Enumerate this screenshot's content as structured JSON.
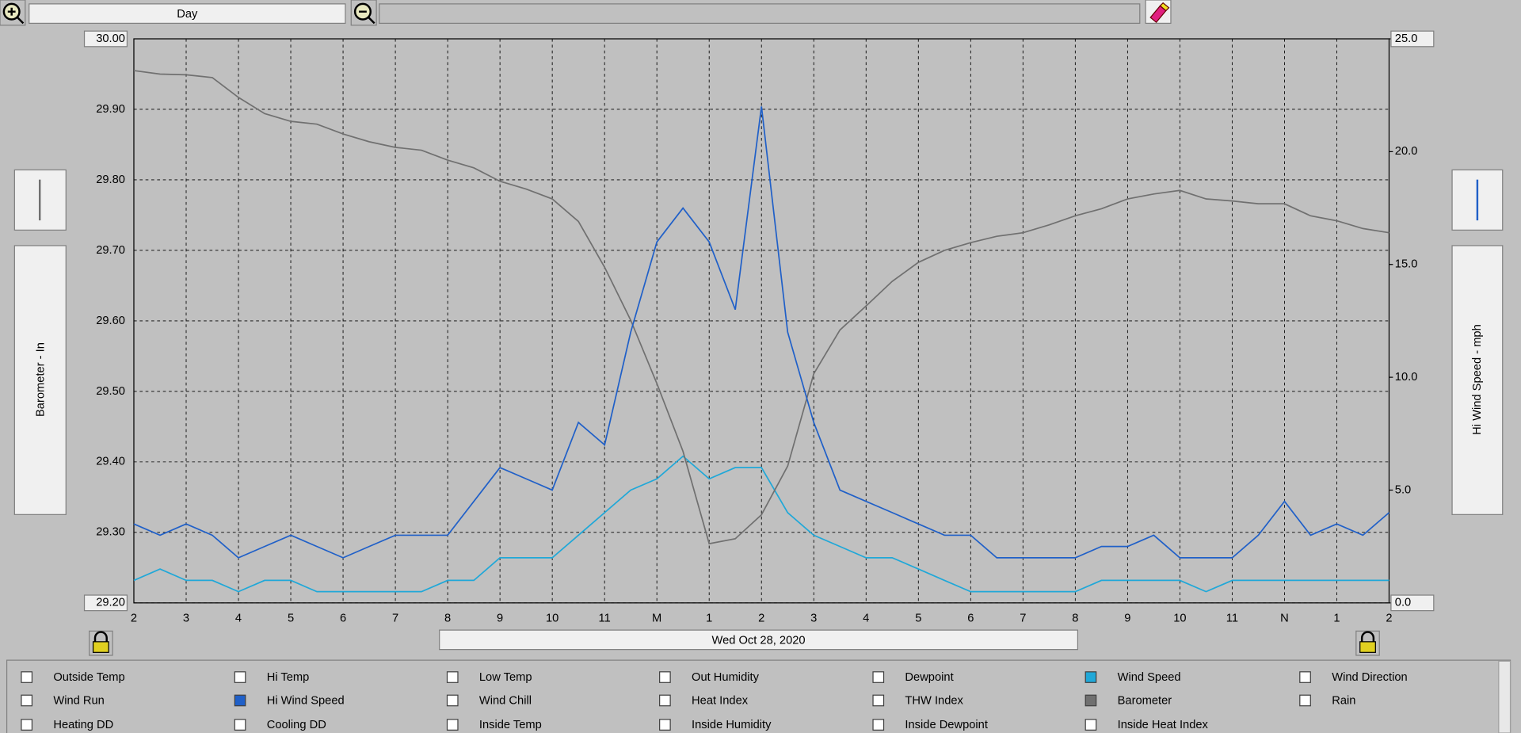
{
  "toolbar": {
    "range": "Day"
  },
  "chart_data": {
    "type": "line",
    "xlabel": "Wed Oct 28, 2020",
    "ylabel": "Barometer - In",
    "y2label": "Hi Wind Speed - mph",
    "grid": true,
    "xlim": [
      0,
      24
    ],
    "xticks": [
      {
        "value": 0,
        "label": "2"
      },
      {
        "value": 1,
        "label": "3"
      },
      {
        "value": 2,
        "label": "4"
      },
      {
        "value": 3,
        "label": "5"
      },
      {
        "value": 4,
        "label": "6"
      },
      {
        "value": 5,
        "label": "7"
      },
      {
        "value": 6,
        "label": "8"
      },
      {
        "value": 7,
        "label": "9"
      },
      {
        "value": 8,
        "label": "10"
      },
      {
        "value": 9,
        "label": "11"
      },
      {
        "value": 10,
        "label": "M"
      },
      {
        "value": 11,
        "label": "1"
      },
      {
        "value": 12,
        "label": "2"
      },
      {
        "value": 13,
        "label": "3"
      },
      {
        "value": 14,
        "label": "4"
      },
      {
        "value": 15,
        "label": "5"
      },
      {
        "value": 16,
        "label": "6"
      },
      {
        "value": 17,
        "label": "7"
      },
      {
        "value": 18,
        "label": "8"
      },
      {
        "value": 19,
        "label": "9"
      },
      {
        "value": 20,
        "label": "10"
      },
      {
        "value": 21,
        "label": "11"
      },
      {
        "value": 22,
        "label": "N"
      },
      {
        "value": 23,
        "label": "1"
      },
      {
        "value": 24,
        "label": "2"
      }
    ],
    "ylim": [
      29.2,
      30.0
    ],
    "yticks": [
      {
        "value": 29.2,
        "label": "29.20"
      },
      {
        "value": 29.3,
        "label": "29.30"
      },
      {
        "value": 29.4,
        "label": "29.40"
      },
      {
        "value": 29.5,
        "label": "29.50"
      },
      {
        "value": 29.6,
        "label": "29.60"
      },
      {
        "value": 29.7,
        "label": "29.70"
      },
      {
        "value": 29.8,
        "label": "29.80"
      },
      {
        "value": 29.9,
        "label": "29.90"
      },
      {
        "value": 30.0,
        "label": "30.00"
      }
    ],
    "y2lim": [
      0,
      25
    ],
    "y2ticks": [
      {
        "value": 0,
        "label": "0.0"
      },
      {
        "value": 5,
        "label": "5.0"
      },
      {
        "value": 10,
        "label": "10.0"
      },
      {
        "value": 15,
        "label": "15.0"
      },
      {
        "value": 20,
        "label": "20.0"
      },
      {
        "value": 25,
        "label": "25.0"
      }
    ],
    "x": [
      0,
      0.5,
      1,
      1.5,
      2,
      2.5,
      3,
      3.5,
      4,
      4.5,
      5,
      5.5,
      6,
      6.5,
      7,
      7.5,
      8,
      8.5,
      9,
      9.5,
      10,
      10.5,
      11,
      11.5,
      12,
      12.5,
      13,
      13.5,
      14,
      14.5,
      15,
      15.5,
      16,
      16.5,
      17,
      17.5,
      18,
      18.5,
      19,
      19.5,
      20,
      20.5,
      21,
      21.5,
      22,
      22.5,
      23,
      23.5,
      24
    ],
    "series": [
      {
        "color": "#20a8d8",
        "axis": "y2",
        "values": [
          1.0,
          1.5,
          1.0,
          1.0,
          0.5,
          1.0,
          1.0,
          0.5,
          0.5,
          0.5,
          0.5,
          0.5,
          1.0,
          1.0,
          2.0,
          2.0,
          2.0,
          3.0,
          4.0,
          5.0,
          5.5,
          6.5,
          5.5,
          6.0,
          6.0,
          4.0,
          3.0,
          2.5,
          2.0,
          2.0,
          1.5,
          1.0,
          0.5,
          0.5,
          0.5,
          0.5,
          0.5,
          1.0,
          1.0,
          1.0,
          1.0,
          0.5,
          1.0,
          1.0,
          1.0,
          1.0,
          1.0,
          1.0,
          1.0
        ]
      },
      {
        "color": "#707070",
        "values": [
          29.955,
          29.95,
          29.949,
          29.945,
          29.917,
          29.894,
          29.883,
          29.879,
          29.865,
          29.854,
          29.846,
          29.842,
          29.828,
          29.817,
          29.798,
          29.787,
          29.773,
          29.741,
          29.676,
          29.601,
          29.511,
          29.415,
          29.284,
          29.291,
          29.325,
          29.394,
          29.525,
          29.587,
          29.621,
          29.656,
          29.683,
          29.7,
          29.711,
          29.72,
          29.725,
          29.736,
          29.749,
          29.759,
          29.773,
          29.78,
          29.785,
          29.773,
          29.77,
          29.766,
          29.766,
          29.749,
          29.742,
          29.731,
          29.725
        ]
      },
      {
        "color": "#2060c8",
        "axis": "y2",
        "values": [
          3.5,
          3.0,
          3.5,
          3.0,
          2.0,
          2.5,
          3.0,
          2.5,
          2.0,
          2.5,
          3.0,
          3.0,
          3.0,
          4.5,
          6.0,
          5.5,
          5.0,
          8.0,
          7.0,
          12.0,
          16.0,
          17.5,
          16.0,
          13.0,
          22.0,
          12.0,
          8.0,
          5.0,
          4.5,
          4.0,
          3.5,
          3.0,
          3.0,
          2.0,
          2.0,
          2.0,
          2.0,
          2.5,
          2.5,
          3.0,
          2.0,
          2.0,
          2.0,
          3.0,
          4.5,
          3.0,
          3.5,
          3.0,
          4.0
        ]
      }
    ]
  },
  "legend_panel": [
    {
      "label": "Outside Temp",
      "checked": false
    },
    {
      "label": "Hi Temp",
      "checked": false
    },
    {
      "label": "Low Temp",
      "checked": false
    },
    {
      "label": "Out Humidity",
      "checked": false
    },
    {
      "label": "Dewpoint",
      "checked": false
    },
    {
      "label": "Wind Speed",
      "checked": true,
      "color": "#20a8d8"
    },
    {
      "label": "Wind Direction",
      "checked": false
    },
    {
      "label": "Wind Run",
      "checked": false
    },
    {
      "label": "Hi Wind Speed",
      "checked": true,
      "color": "#2060c8"
    },
    {
      "label": "Wind Chill",
      "checked": false
    },
    {
      "label": "Heat Index",
      "checked": false
    },
    {
      "label": "THW Index",
      "checked": false
    },
    {
      "label": "Barometer",
      "checked": true,
      "color": "#707070"
    },
    {
      "label": "Rain",
      "checked": false
    },
    {
      "label": "Heating DD",
      "checked": false
    },
    {
      "label": "Cooling DD",
      "checked": false
    },
    {
      "label": "Inside Temp",
      "checked": false
    },
    {
      "label": "Inside Humidity",
      "checked": false
    },
    {
      "label": "Inside Dewpoint",
      "checked": false
    },
    {
      "label": "Inside Heat Index",
      "checked": false
    }
  ]
}
